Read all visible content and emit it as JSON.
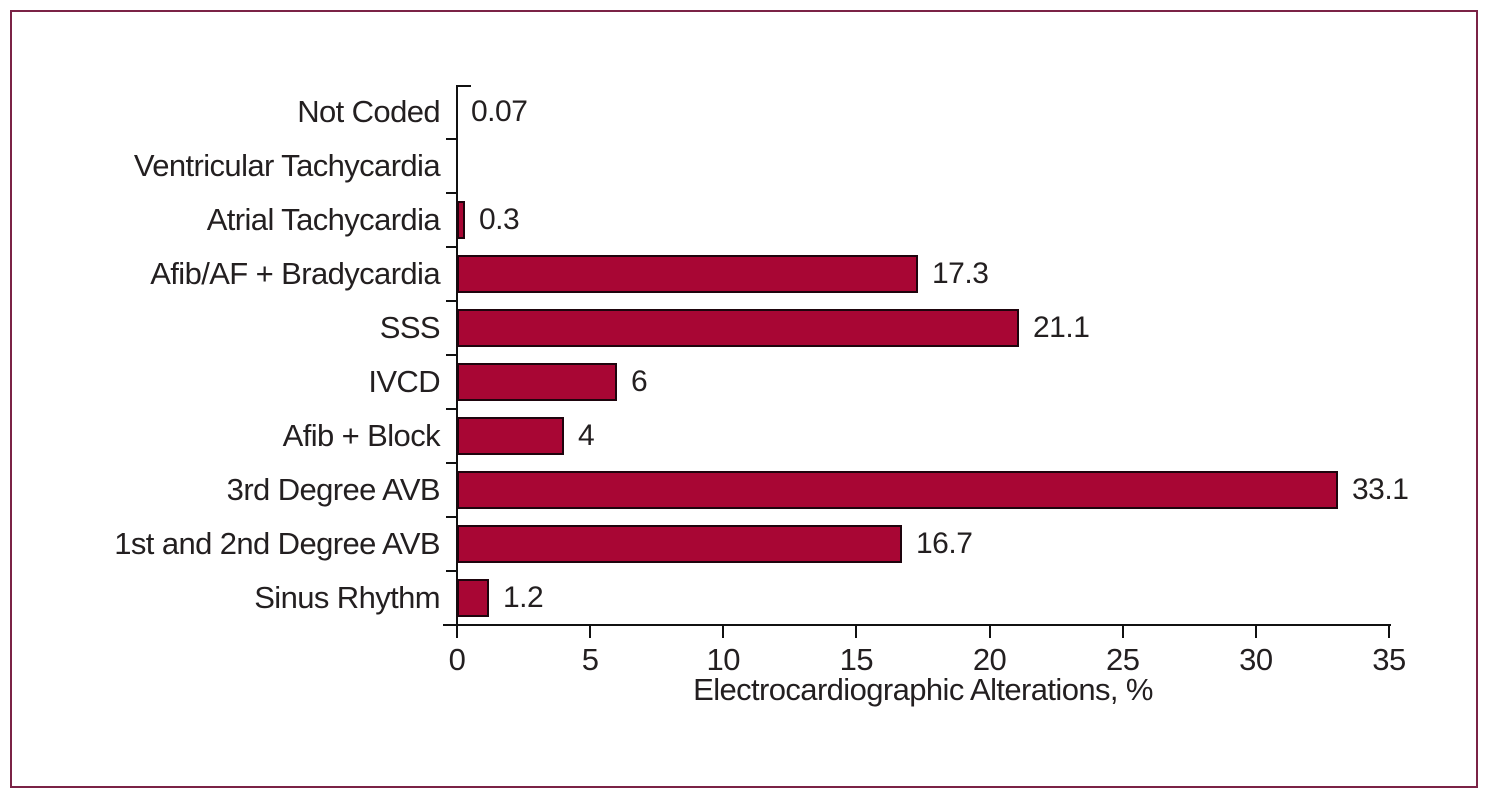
{
  "figure": {
    "background": "#FFFFFF",
    "frame_border_color": "#7B2346",
    "text_color": "#231F20",
    "axis_color": "#111111"
  },
  "chart_data": {
    "type": "bar",
    "orientation": "horizontal",
    "title": "",
    "xlabel": "Electrocardiographic Alterations, %",
    "ylabel": "",
    "xlim": [
      0,
      35
    ],
    "xticks": [
      0,
      5,
      10,
      15,
      20,
      25,
      30,
      35
    ],
    "grid": false,
    "legend": null,
    "bar_color": "#A80634",
    "bar_border_color": "#1E040D",
    "categories": [
      "Not Coded",
      "Ventricular Tachycardia",
      "Atrial Tachycardia",
      "Afib/AF + Bradycardia",
      "SSS",
      "IVCD",
      "Afib + Block",
      "3rd Degree AVB",
      "1st and 2nd Degree AVB",
      "Sinus Rhythm"
    ],
    "values": [
      0.07,
      null,
      0.3,
      17.3,
      21.1,
      6,
      4,
      33.1,
      16.7,
      1.2
    ],
    "value_labels": [
      "0.07",
      "",
      "0.3",
      "17.3",
      "21.1",
      "6",
      "4",
      "33.1",
      "16.7",
      "1.2"
    ]
  }
}
